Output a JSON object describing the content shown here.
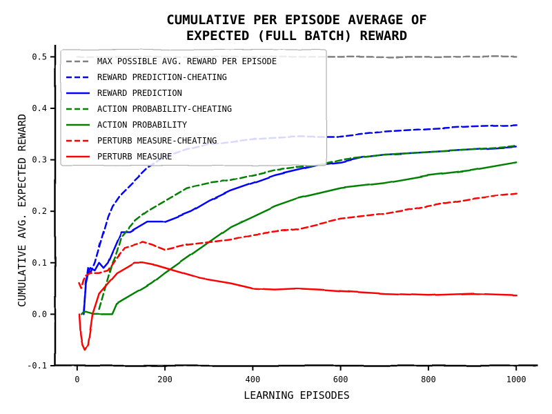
{
  "chart_data": {
    "type": "line",
    "title": "CUMULATIVE PER EPISODE AVERAGE OF",
    "subtitle": "EXPECTED (FULL BATCH) REWARD",
    "xlabel": "LEARNING EPISODES",
    "ylabel": "CUMULATIVE AVG. EXPECTED REWARD",
    "xlim": [
      -50,
      1050
    ],
    "ylim": [
      -0.1,
      0.53
    ],
    "xticks": [
      0,
      200,
      400,
      600,
      800,
      1000
    ],
    "yticks": [
      -0.1,
      0.0,
      0.1,
      0.2,
      0.3,
      0.4,
      0.5
    ],
    "xtick_labels": [
      "0",
      "200",
      "400",
      "600",
      "800",
      "1000"
    ],
    "ytick_labels": [
      "-0.1",
      "0.0",
      "0.1",
      "0.2",
      "0.3",
      "0.4",
      "0.5"
    ],
    "legend_position": "top-left",
    "grid": false,
    "series": [
      {
        "name": "MAX POSSIBLE AVG. REWARD PER EPISODE",
        "color": "#808080",
        "dash": "dashed",
        "points": [
          [
            0,
            0.5
          ],
          [
            1000,
            0.5
          ]
        ]
      },
      {
        "name": "REWARD PREDICTION-CHEATING",
        "color": "#0000ff",
        "dash": "dashed",
        "points": [
          [
            15,
            0.005
          ],
          [
            20,
            0.06
          ],
          [
            25,
            0.09
          ],
          [
            30,
            0.08
          ],
          [
            40,
            0.1
          ],
          [
            50,
            0.13
          ],
          [
            60,
            0.16
          ],
          [
            70,
            0.19
          ],
          [
            80,
            0.21
          ],
          [
            100,
            0.235
          ],
          [
            130,
            0.26
          ],
          [
            160,
            0.285
          ],
          [
            200,
            0.305
          ],
          [
            250,
            0.32
          ],
          [
            300,
            0.33
          ],
          [
            400,
            0.34
          ],
          [
            500,
            0.345
          ],
          [
            600,
            0.345
          ],
          [
            700,
            0.355
          ],
          [
            800,
            0.36
          ],
          [
            900,
            0.365
          ],
          [
            1000,
            0.368
          ]
        ]
      },
      {
        "name": "REWARD PREDICTION",
        "color": "#0000ff",
        "dash": "solid",
        "points": [
          [
            15,
            0.0
          ],
          [
            20,
            0.06
          ],
          [
            25,
            0.08
          ],
          [
            30,
            0.09
          ],
          [
            40,
            0.085
          ],
          [
            50,
            0.1
          ],
          [
            60,
            0.09
          ],
          [
            70,
            0.1
          ],
          [
            80,
            0.12
          ],
          [
            90,
            0.14
          ],
          [
            100,
            0.16
          ],
          [
            120,
            0.16
          ],
          [
            140,
            0.17
          ],
          [
            160,
            0.18
          ],
          [
            200,
            0.18
          ],
          [
            230,
            0.19
          ],
          [
            260,
            0.2
          ],
          [
            300,
            0.22
          ],
          [
            350,
            0.24
          ],
          [
            400,
            0.255
          ],
          [
            450,
            0.27
          ],
          [
            500,
            0.28
          ],
          [
            550,
            0.29
          ],
          [
            600,
            0.295
          ],
          [
            650,
            0.305
          ],
          [
            700,
            0.31
          ],
          [
            800,
            0.315
          ],
          [
            900,
            0.32
          ],
          [
            1000,
            0.325
          ]
        ]
      },
      {
        "name": "ACTION PROBABILITY-CHEATING",
        "color": "#008000",
        "dash": "dashed",
        "points": [
          [
            50,
            0.01
          ],
          [
            60,
            0.04
          ],
          [
            70,
            0.07
          ],
          [
            80,
            0.1
          ],
          [
            90,
            0.12
          ],
          [
            100,
            0.15
          ],
          [
            130,
            0.18
          ],
          [
            160,
            0.2
          ],
          [
            200,
            0.22
          ],
          [
            250,
            0.245
          ],
          [
            300,
            0.255
          ],
          [
            350,
            0.26
          ],
          [
            400,
            0.27
          ],
          [
            450,
            0.28
          ],
          [
            500,
            0.285
          ],
          [
            550,
            0.29
          ],
          [
            600,
            0.3
          ],
          [
            700,
            0.31
          ],
          [
            800,
            0.315
          ],
          [
            900,
            0.32
          ],
          [
            1000,
            0.327
          ]
        ]
      },
      {
        "name": "ACTION PROBABILITY",
        "color": "#008000",
        "dash": "solid",
        "points": [
          [
            10,
            0.0
          ],
          [
            15,
            0.005
          ],
          [
            20,
            0.005
          ],
          [
            40,
            0.0
          ],
          [
            80,
            0.0
          ],
          [
            90,
            0.02
          ],
          [
            110,
            0.03
          ],
          [
            130,
            0.04
          ],
          [
            150,
            0.05
          ],
          [
            170,
            0.06
          ],
          [
            200,
            0.08
          ],
          [
            250,
            0.11
          ],
          [
            300,
            0.14
          ],
          [
            350,
            0.17
          ],
          [
            400,
            0.19
          ],
          [
            450,
            0.21
          ],
          [
            500,
            0.225
          ],
          [
            550,
            0.235
          ],
          [
            600,
            0.245
          ],
          [
            700,
            0.255
          ],
          [
            800,
            0.27
          ],
          [
            900,
            0.28
          ],
          [
            1000,
            0.295
          ]
        ]
      },
      {
        "name": "PERTURB MEASURE-CHEATING",
        "color": "#ff0000",
        "dash": "dashed",
        "points": [
          [
            5,
            0.06
          ],
          [
            10,
            0.05
          ],
          [
            15,
            0.065
          ],
          [
            20,
            0.075
          ],
          [
            30,
            0.08
          ],
          [
            50,
            0.08
          ],
          [
            70,
            0.085
          ],
          [
            90,
            0.11
          ],
          [
            110,
            0.13
          ],
          [
            130,
            0.135
          ],
          [
            150,
            0.14
          ],
          [
            170,
            0.135
          ],
          [
            200,
            0.125
          ],
          [
            250,
            0.135
          ],
          [
            300,
            0.14
          ],
          [
            350,
            0.145
          ],
          [
            400,
            0.155
          ],
          [
            450,
            0.16
          ],
          [
            500,
            0.165
          ],
          [
            550,
            0.175
          ],
          [
            600,
            0.185
          ],
          [
            700,
            0.195
          ],
          [
            800,
            0.21
          ],
          [
            900,
            0.225
          ],
          [
            1000,
            0.235
          ]
        ]
      },
      {
        "name": "PERTURB MEASURE",
        "color": "#ff0000",
        "dash": "solid",
        "points": [
          [
            5,
            0.0
          ],
          [
            8,
            -0.04
          ],
          [
            12,
            -0.06
          ],
          [
            18,
            -0.07
          ],
          [
            25,
            -0.06
          ],
          [
            35,
            0.0
          ],
          [
            50,
            0.04
          ],
          [
            70,
            0.06
          ],
          [
            90,
            0.08
          ],
          [
            110,
            0.09
          ],
          [
            130,
            0.1
          ],
          [
            150,
            0.1
          ],
          [
            180,
            0.095
          ],
          [
            220,
            0.085
          ],
          [
            280,
            0.07
          ],
          [
            350,
            0.06
          ],
          [
            400,
            0.05
          ],
          [
            450,
            0.048
          ],
          [
            500,
            0.05
          ],
          [
            550,
            0.048
          ],
          [
            600,
            0.045
          ],
          [
            700,
            0.04
          ],
          [
            800,
            0.037
          ],
          [
            900,
            0.04
          ],
          [
            1000,
            0.037
          ]
        ]
      }
    ]
  }
}
